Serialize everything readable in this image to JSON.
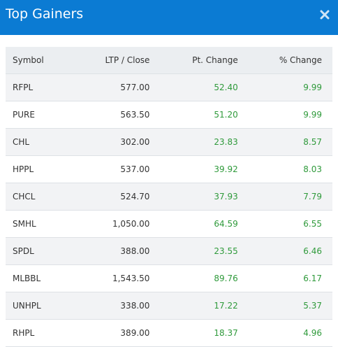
{
  "header": {
    "title": "Top Gainers"
  },
  "table": {
    "columns": [
      "Symbol",
      "LTP / Close",
      "Pt. Change",
      "% Change"
    ],
    "rows": [
      [
        "RFPL",
        "577.00",
        "52.40",
        "9.99"
      ],
      [
        "PURE",
        "563.50",
        "51.20",
        "9.99"
      ],
      [
        "CHL",
        "302.00",
        "23.83",
        "8.57"
      ],
      [
        "HPPL",
        "537.00",
        "39.92",
        "8.03"
      ],
      [
        "CHCL",
        "524.70",
        "37.93",
        "7.79"
      ],
      [
        "SMHL",
        "1,050.00",
        "64.59",
        "6.55"
      ],
      [
        "SPDL",
        "388.00",
        "23.55",
        "6.46"
      ],
      [
        "MLBBL",
        "1,543.50",
        "89.76",
        "6.17"
      ],
      [
        "UNHPL",
        "338.00",
        "17.22",
        "5.37"
      ],
      [
        "RHPL",
        "389.00",
        "18.37",
        "4.96"
      ]
    ]
  }
}
